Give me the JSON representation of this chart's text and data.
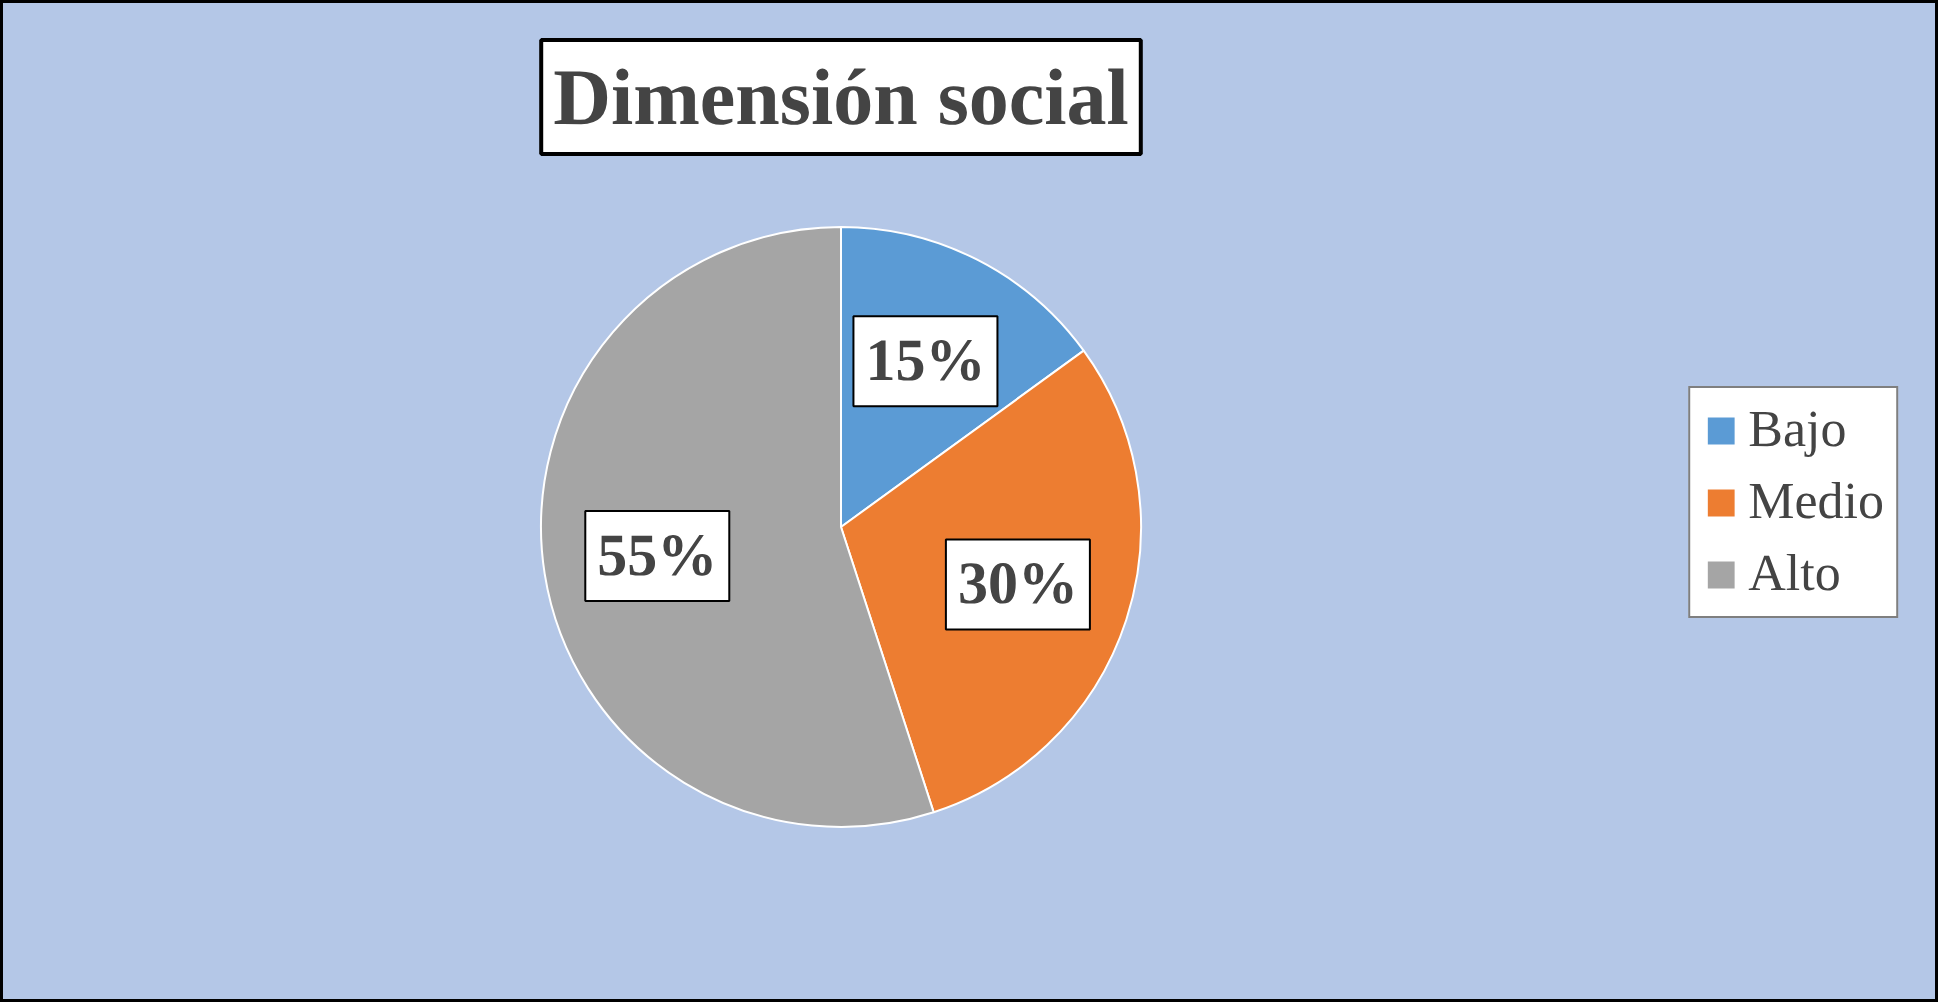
{
  "chart_data": {
    "type": "pie",
    "title": "Dimensión social",
    "categories": [
      "Bajo",
      "Medio",
      "Alto"
    ],
    "values": [
      15,
      30,
      55
    ],
    "colors": [
      "#5b9bd5",
      "#ed7d31",
      "#a5a5a5"
    ],
    "value_labels": [
      "15%",
      "30%",
      "55%"
    ],
    "legend": "right"
  }
}
